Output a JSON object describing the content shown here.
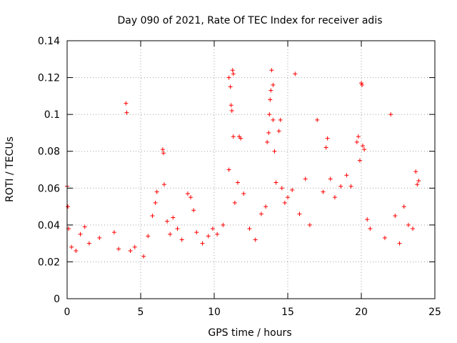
{
  "chart_data": {
    "type": "scatter",
    "title": "Day 090 of 2021, Rate Of TEC Index for receiver adis",
    "xlabel": "GPS time / hours",
    "ylabel": "ROTI / TECUs",
    "xlim": [
      0,
      25
    ],
    "ylim": [
      0,
      0.14
    ],
    "x_ticks": [
      "0",
      "5",
      "10",
      "15",
      "20",
      "25"
    ],
    "y_ticks": [
      "0",
      "0.02",
      "0.04",
      "0.06",
      "0.08",
      "0.1",
      "0.12",
      "0.14"
    ],
    "grid": true,
    "marker": "+",
    "color": "#ff0000",
    "series": [
      {
        "points": [
          [
            0.0,
            0.061
          ],
          [
            0.05,
            0.05
          ],
          [
            0.1,
            0.038
          ],
          [
            0.3,
            0.028
          ],
          [
            0.6,
            0.026
          ],
          [
            0.9,
            0.035
          ],
          [
            1.2,
            0.039
          ],
          [
            1.5,
            0.03
          ],
          [
            2.2,
            0.033
          ],
          [
            3.2,
            0.036
          ],
          [
            3.5,
            0.027
          ],
          [
            4.0,
            0.106
          ],
          [
            4.05,
            0.101
          ],
          [
            4.3,
            0.026
          ],
          [
            4.6,
            0.028
          ],
          [
            5.2,
            0.023
          ],
          [
            5.5,
            0.034
          ],
          [
            5.8,
            0.045
          ],
          [
            6.0,
            0.052
          ],
          [
            6.1,
            0.058
          ],
          [
            6.5,
            0.081
          ],
          [
            6.55,
            0.079
          ],
          [
            6.6,
            0.062
          ],
          [
            6.8,
            0.042
          ],
          [
            7.0,
            0.035
          ],
          [
            7.2,
            0.044
          ],
          [
            7.5,
            0.038
          ],
          [
            7.8,
            0.032
          ],
          [
            8.2,
            0.057
          ],
          [
            8.4,
            0.055
          ],
          [
            8.6,
            0.048
          ],
          [
            8.8,
            0.036
          ],
          [
            9.2,
            0.03
          ],
          [
            9.6,
            0.034
          ],
          [
            9.9,
            0.038
          ],
          [
            10.2,
            0.035
          ],
          [
            10.6,
            0.04
          ],
          [
            11.0,
            0.12
          ],
          [
            11.1,
            0.115
          ],
          [
            11.15,
            0.105
          ],
          [
            11.2,
            0.102
          ],
          [
            11.25,
            0.124
          ],
          [
            11.3,
            0.122
          ],
          [
            11.0,
            0.07
          ],
          [
            11.3,
            0.088
          ],
          [
            11.4,
            0.052
          ],
          [
            11.7,
            0.088
          ],
          [
            11.8,
            0.087
          ],
          [
            11.6,
            0.063
          ],
          [
            12.0,
            0.057
          ],
          [
            12.4,
            0.038
          ],
          [
            12.8,
            0.032
          ],
          [
            13.2,
            0.046
          ],
          [
            13.5,
            0.05
          ],
          [
            13.6,
            0.085
          ],
          [
            13.7,
            0.09
          ],
          [
            13.75,
            0.1
          ],
          [
            13.8,
            0.108
          ],
          [
            13.85,
            0.113
          ],
          [
            13.9,
            0.124
          ],
          [
            14.0,
            0.116
          ],
          [
            14.0,
            0.097
          ],
          [
            14.1,
            0.08
          ],
          [
            14.2,
            0.063
          ],
          [
            14.4,
            0.091
          ],
          [
            14.5,
            0.097
          ],
          [
            14.6,
            0.06
          ],
          [
            14.8,
            0.052
          ],
          [
            15.0,
            0.055
          ],
          [
            15.3,
            0.059
          ],
          [
            15.5,
            0.122
          ],
          [
            15.8,
            0.046
          ],
          [
            16.2,
            0.065
          ],
          [
            16.5,
            0.04
          ],
          [
            17.0,
            0.097
          ],
          [
            17.4,
            0.058
          ],
          [
            17.6,
            0.082
          ],
          [
            17.7,
            0.087
          ],
          [
            17.9,
            0.065
          ],
          [
            18.2,
            0.055
          ],
          [
            18.6,
            0.061
          ],
          [
            19.0,
            0.067
          ],
          [
            19.3,
            0.061
          ],
          [
            19.7,
            0.085
          ],
          [
            19.8,
            0.088
          ],
          [
            19.9,
            0.075
          ],
          [
            20.0,
            0.117
          ],
          [
            20.05,
            0.116
          ],
          [
            20.1,
            0.083
          ],
          [
            20.2,
            0.081
          ],
          [
            20.4,
            0.043
          ],
          [
            20.6,
            0.038
          ],
          [
            21.6,
            0.033
          ],
          [
            22.0,
            0.1
          ],
          [
            22.3,
            0.045
          ],
          [
            22.6,
            0.03
          ],
          [
            22.9,
            0.05
          ],
          [
            23.2,
            0.04
          ],
          [
            23.5,
            0.038
          ],
          [
            23.7,
            0.069
          ],
          [
            23.8,
            0.062
          ],
          [
            23.9,
            0.064
          ]
        ]
      }
    ]
  }
}
